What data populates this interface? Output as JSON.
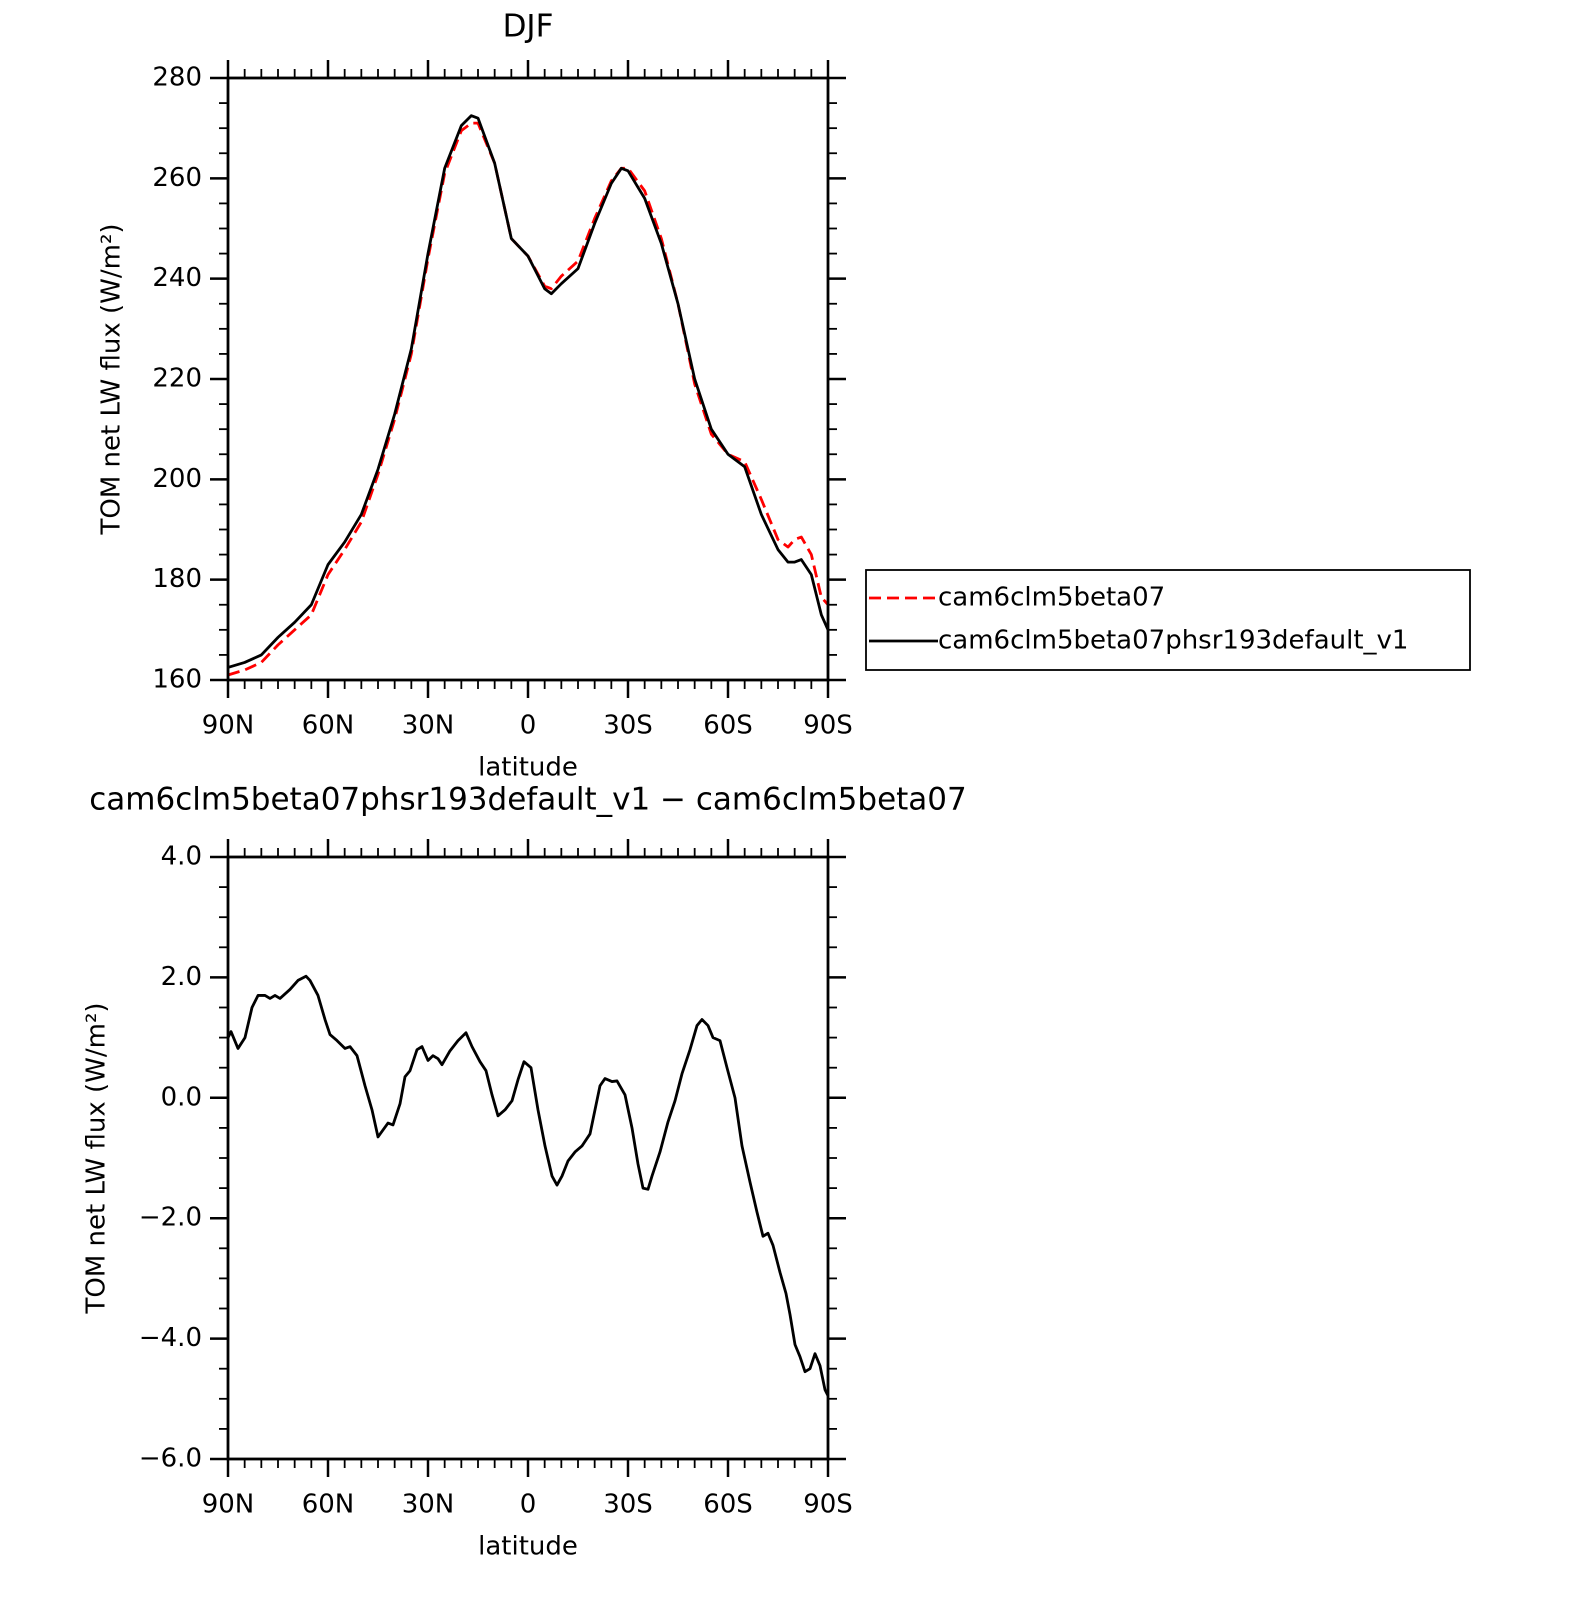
{
  "chart_data": [
    {
      "type": "line",
      "title": "DJF",
      "xlabel": "latitude",
      "ylabel": "TOM net LW flux (W/m²)",
      "x": [
        90,
        85,
        80,
        75,
        70,
        65,
        60,
        55,
        50,
        45,
        40,
        35,
        30,
        25,
        20,
        17,
        15,
        10,
        5,
        0,
        -5,
        -7,
        -10,
        -15,
        -20,
        -25,
        -28,
        -30,
        -35,
        -40,
        -45,
        -50,
        -55,
        -60,
        -65,
        -70,
        -75,
        -78,
        -80,
        -82,
        -85,
        -88,
        -90
      ],
      "series": [
        {
          "name": "cam6clm5beta07",
          "color": "#ff0000",
          "line_style": "dashed",
          "values": [
            161,
            162,
            163.5,
            167,
            170,
            173,
            181,
            186,
            191.5,
            201,
            212,
            225,
            244,
            261,
            269.5,
            271,
            271,
            263,
            248,
            244.5,
            238.5,
            238,
            240.5,
            243.5,
            252,
            259.5,
            262,
            262,
            257.5,
            248,
            235,
            219,
            209,
            205,
            203.5,
            196,
            188,
            186.5,
            188,
            188.5,
            185,
            176.5,
            175
          ]
        },
        {
          "name": "cam6clm5beta07phsr193default_v1",
          "color": "#000000",
          "line_style": "solid",
          "values": [
            162.5,
            163.5,
            165,
            168.5,
            171.5,
            175,
            183,
            187.5,
            193,
            202,
            213,
            226,
            245,
            262,
            270.5,
            272.5,
            272,
            263,
            248,
            244.5,
            238,
            237,
            239,
            242,
            251,
            259,
            262,
            261.5,
            256,
            247,
            235,
            220,
            210,
            205,
            202.5,
            193,
            186,
            183.5,
            183.5,
            184,
            181,
            173,
            170
          ]
        }
      ],
      "xlim": [
        90,
        -90
      ],
      "xticks": [
        {
          "value": 90,
          "label": "90N"
        },
        {
          "value": 60,
          "label": "60N"
        },
        {
          "value": 30,
          "label": "30N"
        },
        0,
        {
          "value": -30,
          "label": "30S"
        },
        {
          "value": -60,
          "label": "60S"
        },
        {
          "value": -90,
          "label": "90S"
        }
      ],
      "ylim": [
        160,
        280
      ],
      "yticks": [
        160,
        180,
        200,
        220,
        240,
        260,
        280
      ],
      "legend": "right"
    },
    {
      "type": "line",
      "title": "cam6clm5beta07phsr193default_v1 − cam6clm5beta07",
      "xlabel": "latitude",
      "ylabel": "TOM net LW flux (W/m²)",
      "color": "#000000",
      "x": [
        90,
        89.1,
        87,
        84.9,
        82.8,
        81,
        78.9,
        77.4,
        75.9,
        74.4,
        71.4,
        69,
        66.6,
        65.4,
        63,
        60.9,
        59.4,
        57.3,
        54.9,
        53.4,
        51.3,
        48.9,
        46.8,
        45,
        42,
        40.5,
        38.4,
        36.9,
        35.4,
        33.3,
        31.8,
        30,
        28.5,
        27,
        25.8,
        23.4,
        21,
        18.6,
        16.8,
        14.4,
        12.6,
        10.8,
        9,
        6.9,
        4.8,
        3,
        1.2,
        -0.9,
        -3,
        -5.1,
        -7.2,
        -8.7,
        -10.2,
        -12,
        -14.1,
        -16.2,
        -18.6,
        -20.1,
        -21.6,
        -23.1,
        -25.2,
        -26.7,
        -29.1,
        -31.2,
        -33,
        -34.5,
        -36,
        -37.2,
        -39.6,
        -42,
        -44.1,
        -46.2,
        -48.6,
        -50.7,
        -52.2,
        -54,
        -55.5,
        -57.6,
        -59.7,
        -62.1,
        -64.2,
        -66.6,
        -68.7,
        -70.5,
        -72,
        -73.5,
        -75.6,
        -77.4,
        -78.6,
        -80.1,
        -81.6,
        -83.1,
        -84.6,
        -86.1,
        -87.6,
        -89.1,
        -90
      ],
      "values": [
        1.0,
        1.1,
        0.82,
        1.0,
        1.5,
        1.7,
        1.7,
        1.65,
        1.7,
        1.65,
        1.8,
        1.95,
        2.02,
        1.95,
        1.7,
        1.3,
        1.05,
        0.95,
        0.82,
        0.85,
        0.7,
        0.2,
        -0.2,
        -0.65,
        -0.42,
        -0.45,
        -0.1,
        0.35,
        0.45,
        0.8,
        0.85,
        0.62,
        0.7,
        0.65,
        0.55,
        0.78,
        0.95,
        1.08,
        0.85,
        0.6,
        0.45,
        0.05,
        -0.3,
        -0.2,
        -0.05,
        0.3,
        0.6,
        0.5,
        -0.2,
        -0.8,
        -1.3,
        -1.45,
        -1.3,
        -1.05,
        -0.9,
        -0.8,
        -0.6,
        -0.2,
        0.2,
        0.32,
        0.27,
        0.28,
        0.05,
        -0.5,
        -1.1,
        -1.5,
        -1.52,
        -1.3,
        -0.9,
        -0.4,
        -0.05,
        0.4,
        0.8,
        1.2,
        1.3,
        1.2,
        1.0,
        0.95,
        0.5,
        0.0,
        -0.8,
        -1.4,
        -1.9,
        -2.3,
        -2.25,
        -2.45,
        -2.9,
        -3.25,
        -3.6,
        -4.1,
        -4.3,
        -4.55,
        -4.5,
        -4.25,
        -4.45,
        -4.85,
        -4.95
      ],
      "xlim": [
        90,
        -90
      ],
      "xticks": [
        {
          "value": 90,
          "label": "90N"
        },
        {
          "value": 60,
          "label": "60N"
        },
        {
          "value": 30,
          "label": "30N"
        },
        0,
        {
          "value": -30,
          "label": "30S"
        },
        {
          "value": -60,
          "label": "60S"
        },
        {
          "value": -90,
          "label": "90S"
        }
      ],
      "ylim": [
        -6,
        4
      ],
      "yticks": [
        {
          "value": -6,
          "label": "−6.0"
        },
        {
          "value": -4,
          "label": "−4.0"
        },
        {
          "value": -2,
          "label": "−2.0"
        },
        {
          "value": 0,
          "label": "0.0"
        },
        {
          "value": 2,
          "label": "2.0"
        },
        {
          "value": 4,
          "label": "4.0"
        }
      ]
    }
  ]
}
